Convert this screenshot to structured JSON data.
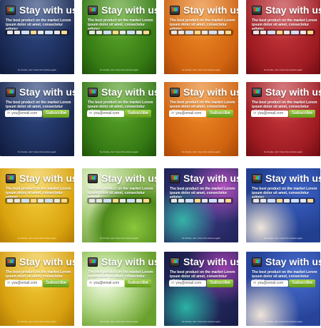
{
  "content": {
    "title": "Stay with us!",
    "tagline": "The best product on the market Lorem ipsum dolor sit amet, consectetur adipisc",
    "email_placeholder": "you@email.com",
    "subscribe_label": "Subscribe",
    "footer": "No thanks, don't show this window again"
  },
  "cards": [
    {
      "theme": "navy",
      "variant": "social"
    },
    {
      "theme": "green",
      "variant": "social"
    },
    {
      "theme": "orange",
      "variant": "social"
    },
    {
      "theme": "red",
      "variant": "social"
    },
    {
      "theme": "navy",
      "variant": "email"
    },
    {
      "theme": "green",
      "variant": "email"
    },
    {
      "theme": "orange",
      "variant": "email"
    },
    {
      "theme": "red",
      "variant": "email"
    },
    {
      "theme": "yellow",
      "variant": "social"
    },
    {
      "theme": "blurred-green",
      "variant": "social"
    },
    {
      "theme": "teal-purple",
      "variant": "social"
    },
    {
      "theme": "blurred-blue",
      "variant": "social"
    },
    {
      "theme": "yellow",
      "variant": "email"
    },
    {
      "theme": "blurred-green",
      "variant": "email"
    },
    {
      "theme": "teal-purple",
      "variant": "email"
    },
    {
      "theme": "blurred-blue",
      "variant": "email"
    }
  ],
  "icons": {
    "logo": "tv-icon",
    "email": "envelope-icon"
  },
  "colors": {
    "navy": "#1f3166",
    "green": "#3c8a17",
    "orange": "#e0731a",
    "red": "#a6222a",
    "yellow": "#e2b21f",
    "subscribe": "#7ab828"
  }
}
